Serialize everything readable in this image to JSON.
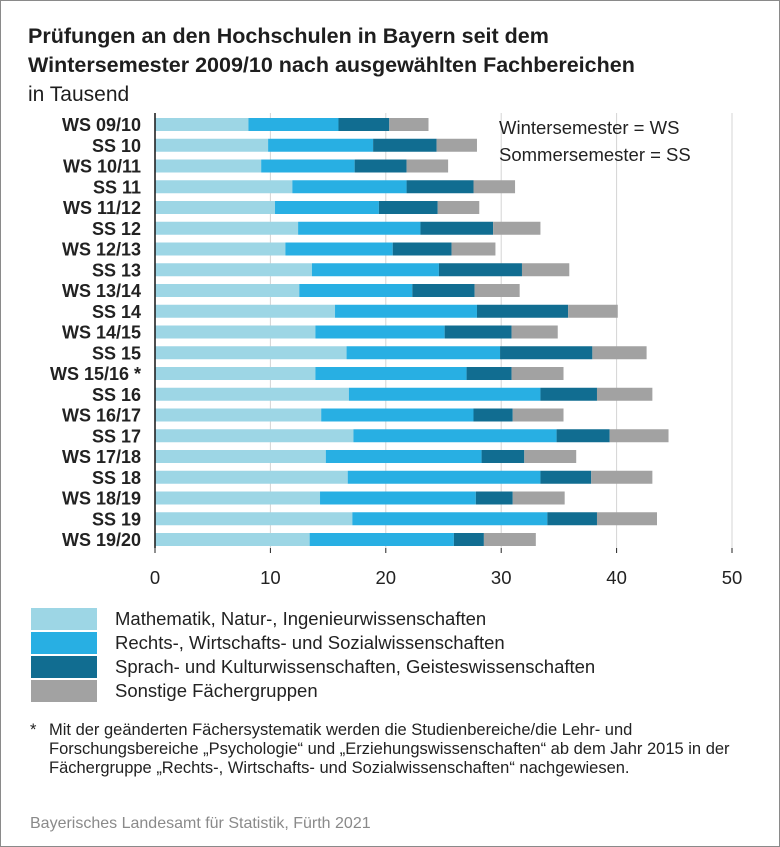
{
  "title_line1": "Prüfungen an den Hochschulen in Bayern seit dem",
  "title_line2": "Wintersemester 2009/10 nach ausgewählten Fachbereichen",
  "subtitle": "in Tausend",
  "annotation_line1": "Wintersemester = WS",
  "annotation_line2": "Sommersemester = SS",
  "footnote_mark": "*",
  "footnote_text": "Mit der geänderten Fächersystematik werden die Studienbereiche/die Lehr- und Forschungsbereiche „Psychologie“ und „Erziehungswissenschaften“ ab dem Jahr 2015 in der Fächergruppe „Rechts-, Wirtschafts- und Sozialwissenschaften“ nachgewiesen.",
  "source": "Bayerisches Landesamt für Statistik, Fürth 2021",
  "colors": {
    "mint": "#9dd6e5",
    "rechts": "#28afe3",
    "sprach": "#116d91",
    "sonstige": "#a2a2a2",
    "grid": "#d4d4d4",
    "axis": "#222222"
  },
  "chart_data": {
    "type": "bar",
    "orientation": "horizontal",
    "stacked": true,
    "categories": [
      "WS 09/10",
      "SS 10",
      "WS 10/11",
      "SS 11",
      "WS 11/12",
      "SS 12",
      "WS 12/13",
      "SS 13",
      "WS 13/14",
      "SS 14",
      "WS 14/15",
      "SS 15",
      "WS 15/16 *",
      "SS 16",
      "WS 16/17",
      "SS 17",
      "WS 17/18",
      "SS 18",
      "WS 18/19",
      "SS 19",
      "WS 19/20"
    ],
    "series": [
      {
        "name": "Mathematik, Natur-, Ingenieurwissenschaften",
        "values": [
          8.1,
          9.8,
          9.2,
          11.9,
          10.4,
          12.4,
          11.3,
          13.6,
          12.5,
          15.6,
          13.9,
          16.6,
          13.9,
          16.8,
          14.4,
          17.2,
          14.8,
          16.7,
          14.3,
          17.1,
          13.4
        ]
      },
      {
        "name": "Rechts-, Wirtschafts- und Sozialwissenschaften",
        "values": [
          7.8,
          9.1,
          8.1,
          9.9,
          9.0,
          10.6,
          9.3,
          11.0,
          9.8,
          12.3,
          11.2,
          13.3,
          13.1,
          16.6,
          13.2,
          17.6,
          13.5,
          16.7,
          13.5,
          16.9,
          12.5
        ]
      },
      {
        "name": "Sprach- und Kulturwissenschaften, Geisteswissenschaften",
        "values": [
          4.4,
          5.5,
          4.5,
          5.8,
          5.1,
          6.3,
          5.1,
          7.2,
          5.4,
          7.9,
          5.8,
          8.0,
          3.9,
          4.9,
          3.4,
          4.6,
          3.7,
          4.4,
          3.2,
          4.3,
          2.6
        ]
      },
      {
        "name": "Sonstige Fächergruppen",
        "values": [
          3.4,
          3.5,
          3.6,
          3.6,
          3.6,
          4.1,
          3.8,
          4.1,
          3.9,
          4.3,
          4.0,
          4.7,
          4.5,
          4.8,
          4.4,
          5.1,
          4.5,
          5.3,
          4.5,
          5.2,
          4.5
        ]
      }
    ],
    "xlim": [
      0,
      50
    ],
    "xticks": [
      0,
      10,
      20,
      30,
      40,
      50
    ],
    "grid": true,
    "legend_position": "bottom"
  }
}
